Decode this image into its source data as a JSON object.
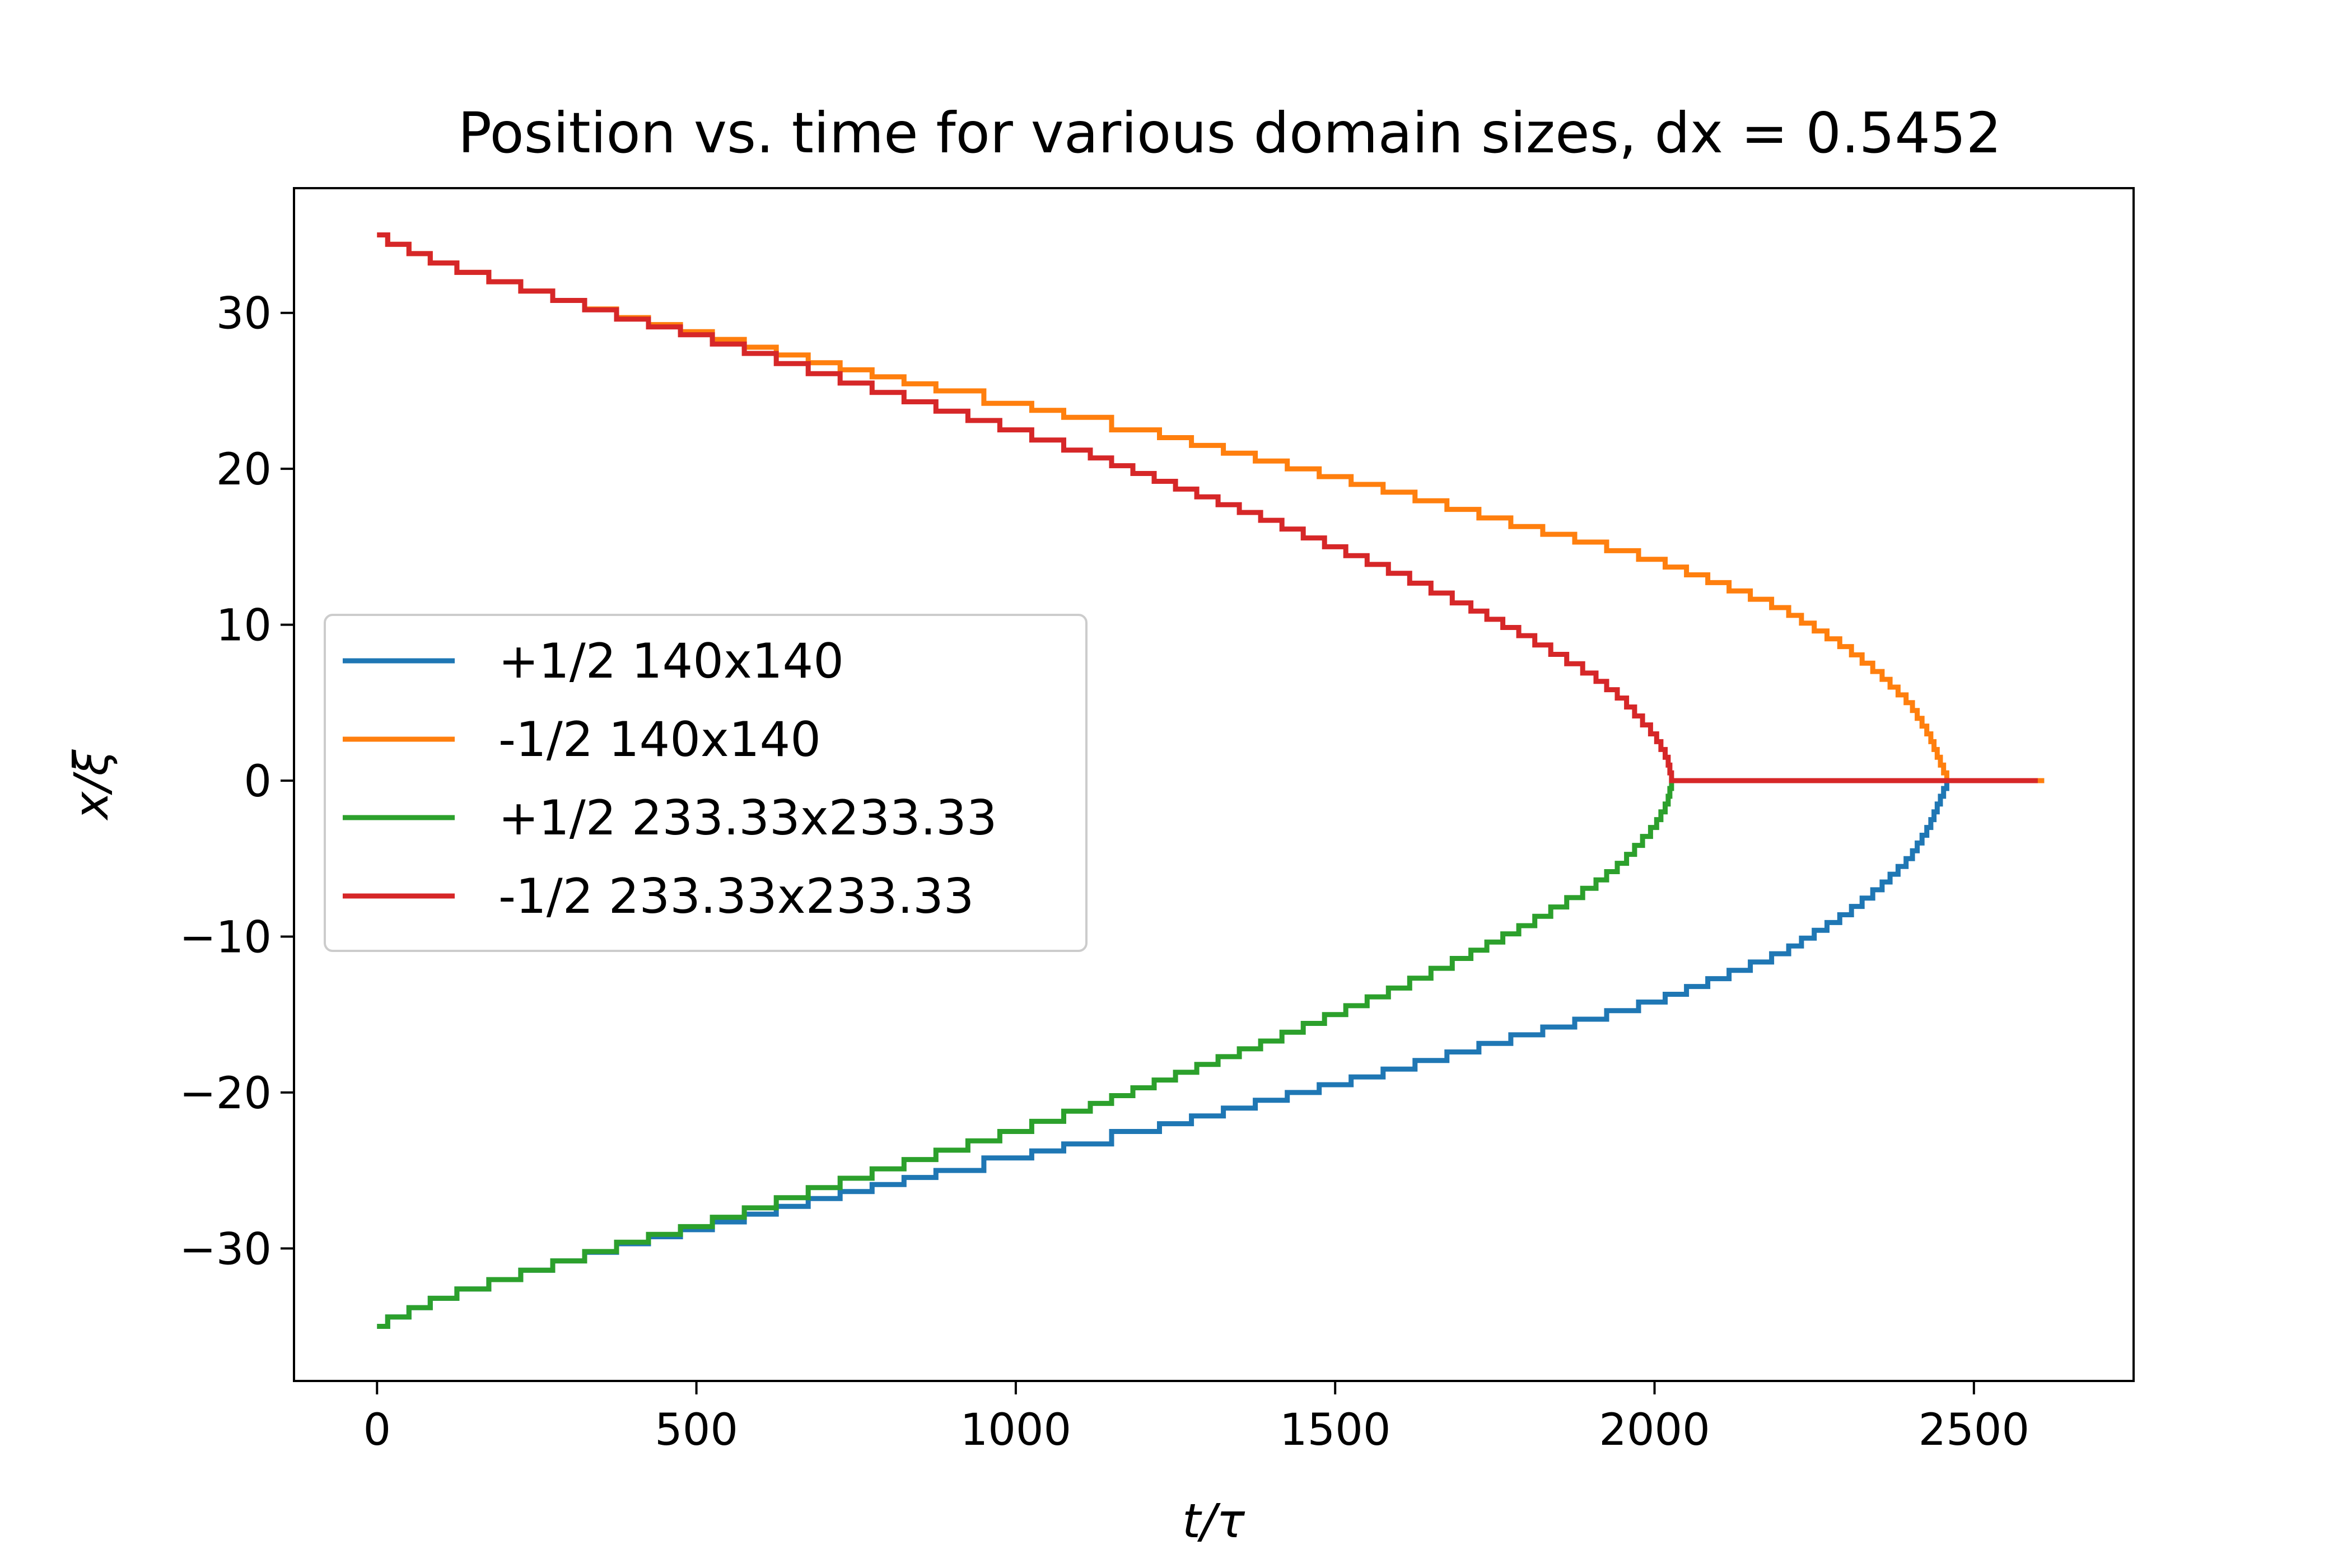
{
  "chart_data": {
    "type": "line",
    "title": "Position vs. time for various domain sizes, dx = 0.5452",
    "xlabel": "t/τ",
    "ylabel": "x/ξ",
    "xlim": [
      -130,
      2750
    ],
    "ylim": [
      -38.5,
      38.0
    ],
    "xticks": [
      0,
      500,
      1000,
      1500,
      2000,
      2500
    ],
    "xtick_labels": [
      "0",
      "500",
      "1000",
      "1500",
      "2000",
      "2500"
    ],
    "yticks": [
      -30,
      -20,
      -10,
      0,
      10,
      20,
      30
    ],
    "ytick_labels": [
      "−30",
      "−20",
      "−10",
      "0",
      "10",
      "20",
      "30"
    ],
    "grid": false,
    "legend_position": "center-left",
    "step_size": 0.5452,
    "series": [
      {
        "name": "+1/2 140x140",
        "color": "#1f77b4",
        "x": [
          0,
          100,
          200,
          300,
          400,
          500,
          600,
          700,
          800,
          900,
          1000,
          1100,
          1200,
          1300,
          1400,
          1500,
          1600,
          1700,
          1800,
          1900,
          2000,
          2100,
          2200,
          2300,
          2350,
          2400,
          2430,
          2450,
          2460,
          2610
        ],
        "y": [
          -35,
          -33.2,
          -32.0,
          -30.8,
          -29.7,
          -28.8,
          -27.8,
          -26.8,
          -25.9,
          -25.0,
          -24.2,
          -23.3,
          -22.5,
          -21.5,
          -20.5,
          -19.5,
          -18.5,
          -17.4,
          -16.3,
          -15.3,
          -14.2,
          -12.7,
          -11.1,
          -8.6,
          -7.0,
          -5.0,
          -3.0,
          -1.0,
          0,
          0
        ]
      },
      {
        "name": "-1/2 140x140",
        "color": "#ff7f0e",
        "x": [
          0,
          100,
          200,
          300,
          400,
          500,
          600,
          700,
          800,
          900,
          1000,
          1100,
          1200,
          1300,
          1400,
          1500,
          1600,
          1700,
          1800,
          1900,
          2000,
          2100,
          2200,
          2300,
          2350,
          2400,
          2430,
          2450,
          2460,
          2610
        ],
        "y": [
          35,
          33.2,
          32.0,
          30.8,
          29.7,
          28.8,
          27.8,
          26.8,
          25.9,
          25.0,
          24.2,
          23.3,
          22.5,
          21.5,
          20.5,
          19.5,
          18.5,
          17.4,
          16.3,
          15.3,
          14.2,
          12.7,
          11.1,
          8.6,
          7.0,
          5.0,
          3.0,
          1.0,
          0,
          0
        ]
      },
      {
        "name": "+1/2 233.33x233.33",
        "color": "#2ca02c",
        "x": [
          0,
          100,
          200,
          300,
          400,
          500,
          600,
          700,
          800,
          900,
          1000,
          1100,
          1200,
          1300,
          1400,
          1500,
          1600,
          1700,
          1800,
          1900,
          1950,
          2000,
          2020,
          2028
        ],
        "y": [
          -35,
          -33.2,
          -32.0,
          -30.8,
          -29.6,
          -28.6,
          -27.4,
          -26.1,
          -24.9,
          -23.7,
          -22.5,
          -21.2,
          -19.7,
          -18.2,
          -16.7,
          -15.0,
          -13.3,
          -11.4,
          -9.3,
          -6.9,
          -5.3,
          -3.0,
          -1.5,
          0
        ]
      },
      {
        "name": "-1/2 233.33x233.33",
        "color": "#d62728",
        "x": [
          0,
          100,
          200,
          300,
          400,
          500,
          600,
          700,
          800,
          900,
          1000,
          1100,
          1200,
          1300,
          1400,
          1500,
          1600,
          1700,
          1800,
          1900,
          1950,
          2000,
          2020,
          2028,
          2600
        ],
        "y": [
          35,
          33.2,
          32.0,
          30.8,
          29.6,
          28.6,
          27.4,
          26.1,
          24.9,
          23.7,
          22.5,
          21.2,
          19.7,
          18.2,
          16.7,
          15.0,
          13.3,
          11.4,
          9.3,
          6.9,
          5.3,
          3.0,
          1.5,
          0,
          0
        ]
      }
    ]
  }
}
